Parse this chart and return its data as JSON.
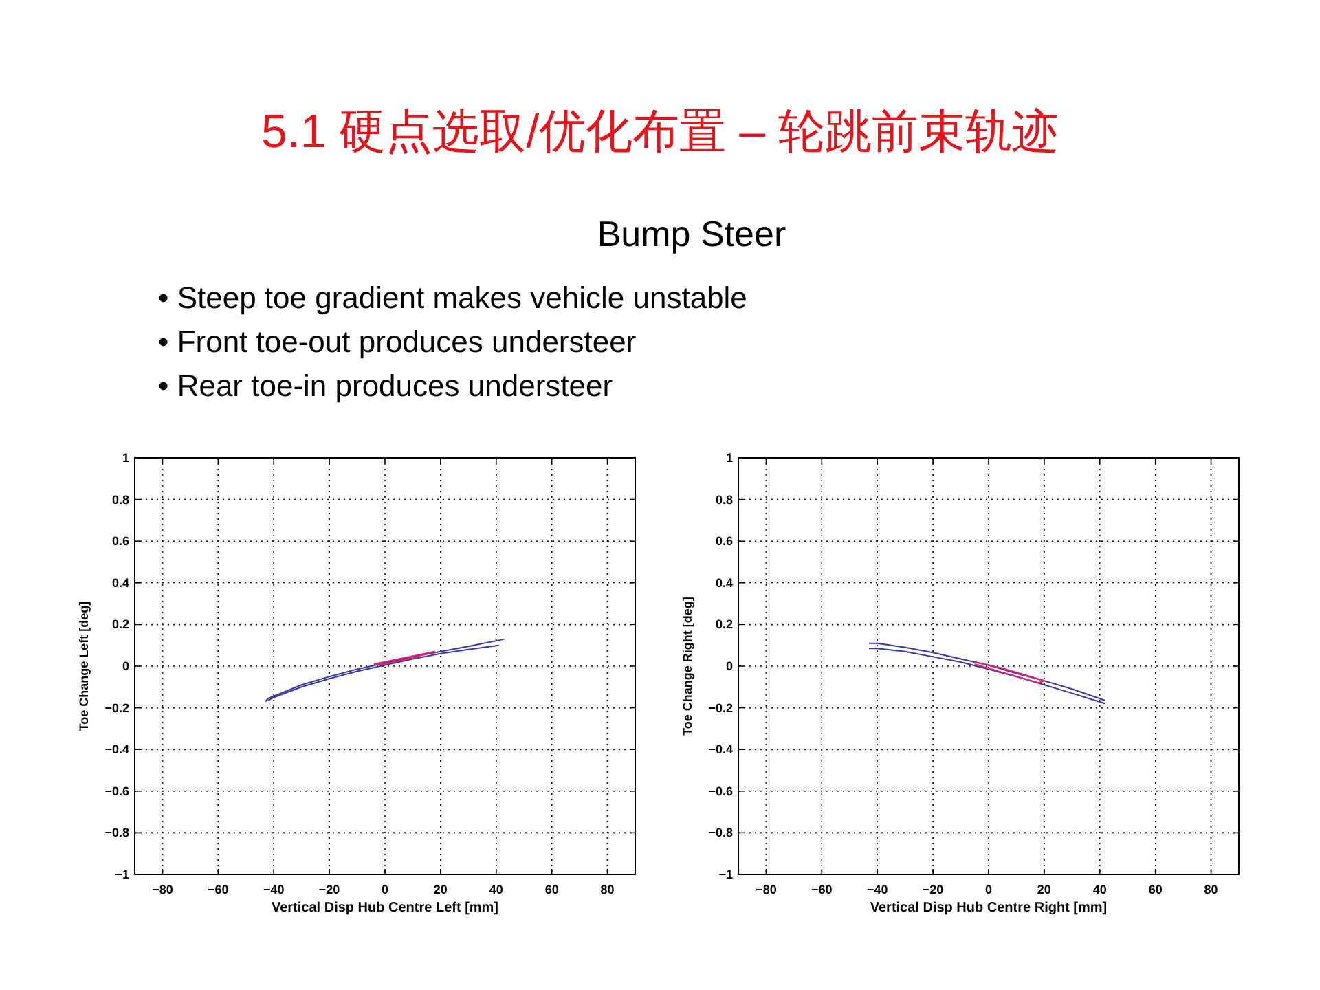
{
  "chart_data": [
    {
      "type": "line",
      "title": "5.1  硬点选取/优化布置 – 轮跳前束轨迹",
      "subtitle": "Bump Steer",
      "annotations": [
        "• Steep toe gradient makes vehicle unstable",
        "• Front toe-out produces understeer",
        "• Rear toe-in produces understeer"
      ],
      "xlabel": "Vertical Disp Hub Centre Left [mm]",
      "ylabel": "Toe Change Left [deg]",
      "xlim": [
        -90,
        90
      ],
      "xticks": [
        -80,
        -60,
        -40,
        -20,
        0,
        20,
        40,
        60,
        80
      ],
      "ylim": [
        -1,
        1
      ],
      "yticks": [
        -1,
        -0.8,
        -0.6,
        -0.4,
        -0.2,
        0,
        0.2,
        0.4,
        0.6,
        0.8,
        1
      ],
      "grid": true,
      "line_style": "solid",
      "marker": "none",
      "series": [
        {
          "color": "#3a3a9e",
          "x": [
            -43,
            -42,
            -30,
            -20,
            -10,
            0,
            10,
            20,
            30,
            43
          ],
          "values": [
            -0.17,
            -0.155,
            -0.09,
            -0.05,
            -0.015,
            0.015,
            0.045,
            0.07,
            0.095,
            0.13
          ]
        },
        {
          "color": "#3a3a9e",
          "x": [
            -42,
            -40,
            -30,
            -20,
            -10,
            0,
            10,
            20,
            30,
            41
          ],
          "values": [
            -0.165,
            -0.15,
            -0.1,
            -0.06,
            -0.025,
            0.005,
            0.035,
            0.06,
            0.08,
            0.1
          ]
        },
        {
          "color": "#e0206a",
          "x": [
            -4,
            5,
            18
          ],
          "values": [
            0.01,
            0.035,
            0.07
          ]
        },
        {
          "color": "#e0206a",
          "x": [
            -4,
            0,
            10,
            18
          ],
          "values": [
            0.01,
            0.01,
            0.04,
            0.07
          ]
        }
      ]
    },
    {
      "type": "line",
      "xlabel": "Vertical Disp Hub Centre Right [mm]",
      "ylabel": "Toe Change Right [deg]",
      "xlim": [
        -90,
        90
      ],
      "xticks": [
        -80,
        -60,
        -40,
        -20,
        0,
        20,
        40,
        60,
        80
      ],
      "ylim": [
        -1,
        1
      ],
      "yticks": [
        -1,
        -0.8,
        -0.6,
        -0.4,
        -0.2,
        0,
        0.2,
        0.4,
        0.6,
        0.8,
        1
      ],
      "grid": true,
      "line_style": "solid",
      "marker": "none",
      "series": [
        {
          "color": "#3a3a9e",
          "x": [
            -43,
            -40,
            -30,
            -20,
            -10,
            0,
            10,
            20,
            30,
            42
          ],
          "values": [
            0.11,
            0.11,
            0.09,
            0.065,
            0.035,
            0.005,
            -0.035,
            -0.07,
            -0.11,
            -0.165
          ]
        },
        {
          "color": "#3a3a9e",
          "x": [
            -43,
            -40,
            -30,
            -20,
            -10,
            0,
            10,
            20,
            30,
            42
          ],
          "values": [
            0.085,
            0.085,
            0.07,
            0.045,
            0.02,
            -0.015,
            -0.05,
            -0.09,
            -0.13,
            -0.18
          ]
        },
        {
          "color": "#e0206a",
          "x": [
            -5,
            5,
            20
          ],
          "values": [
            0.02,
            -0.01,
            -0.07
          ]
        },
        {
          "color": "#e0206a",
          "x": [
            -5,
            5,
            18,
            20
          ],
          "values": [
            0.01,
            -0.03,
            -0.08,
            -0.07
          ]
        }
      ]
    }
  ]
}
